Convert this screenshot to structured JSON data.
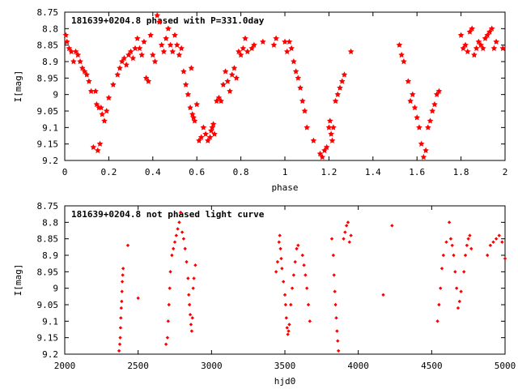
{
  "chart_data": [
    {
      "type": "scatter",
      "title": "181639+0204.8 phased with P=331.0day",
      "xlabel": "phase",
      "ylabel": "I[mag]",
      "xlim": [
        0,
        2
      ],
      "ylim": [
        9.2,
        8.75
      ],
      "y_inverted": true,
      "grid": false,
      "x_ticks": [
        "0",
        "0.2",
        "0.4",
        "0.6",
        "0.8",
        "1",
        "1.2",
        "1.4",
        "1.6",
        "1.8",
        "2"
      ],
      "y_ticks": [
        "8.75",
        "8.8",
        "8.85",
        "8.9",
        "8.95",
        "9",
        "9.05",
        "9.1",
        "9.15",
        "9.2"
      ],
      "marker_color": "#ff0000",
      "marker": "star",
      "points": [
        [
          0.005,
          8.82
        ],
        [
          0.01,
          8.84
        ],
        [
          0.02,
          8.86
        ],
        [
          0.03,
          8.87
        ],
        [
          0.04,
          8.9
        ],
        [
          0.05,
          8.87
        ],
        [
          0.06,
          8.88
        ],
        [
          0.07,
          8.9
        ],
        [
          0.08,
          8.92
        ],
        [
          0.09,
          8.93
        ],
        [
          0.1,
          8.94
        ],
        [
          0.11,
          8.96
        ],
        [
          0.12,
          8.99
        ],
        [
          0.13,
          9.16
        ],
        [
          0.14,
          8.99
        ],
        [
          0.145,
          9.03
        ],
        [
          0.15,
          9.17
        ],
        [
          0.155,
          9.04
        ],
        [
          0.16,
          9.15
        ],
        [
          0.165,
          9.04
        ],
        [
          0.17,
          9.06
        ],
        [
          0.18,
          9.08
        ],
        [
          0.19,
          9.05
        ],
        [
          0.2,
          9.01
        ],
        [
          0.22,
          8.97
        ],
        [
          0.24,
          8.94
        ],
        [
          0.25,
          8.92
        ],
        [
          0.26,
          8.9
        ],
        [
          0.27,
          8.89
        ],
        [
          0.28,
          8.91
        ],
        [
          0.29,
          8.88
        ],
        [
          0.3,
          8.87
        ],
        [
          0.31,
          8.89
        ],
        [
          0.32,
          8.86
        ],
        [
          0.33,
          8.83
        ],
        [
          0.34,
          8.86
        ],
        [
          0.35,
          8.88
        ],
        [
          0.36,
          8.84
        ],
        [
          0.37,
          8.95
        ],
        [
          0.38,
          8.96
        ],
        [
          0.39,
          8.82
        ],
        [
          0.4,
          8.88
        ],
        [
          0.41,
          8.9
        ],
        [
          0.42,
          8.76
        ],
        [
          0.43,
          8.78
        ],
        [
          0.44,
          8.85
        ],
        [
          0.45,
          8.87
        ],
        [
          0.46,
          8.83
        ],
        [
          0.47,
          8.8
        ],
        [
          0.48,
          8.85
        ],
        [
          0.49,
          8.87
        ],
        [
          0.5,
          8.82
        ],
        [
          0.51,
          8.85
        ],
        [
          0.52,
          8.88
        ],
        [
          0.53,
          8.86
        ],
        [
          0.54,
          8.93
        ],
        [
          0.55,
          8.97
        ],
        [
          0.56,
          9.0
        ],
        [
          0.57,
          9.04
        ],
        [
          0.575,
          8.92
        ],
        [
          0.58,
          9.06
        ],
        [
          0.585,
          9.07
        ],
        [
          0.59,
          9.08
        ],
        [
          0.6,
          9.03
        ],
        [
          0.61,
          9.14
        ],
        [
          0.62,
          9.13
        ],
        [
          0.63,
          9.1
        ],
        [
          0.64,
          9.12
        ],
        [
          0.65,
          9.14
        ],
        [
          0.66,
          9.13
        ],
        [
          0.665,
          9.11
        ],
        [
          0.67,
          9.1
        ],
        [
          0.675,
          9.09
        ],
        [
          0.68,
          9.12
        ],
        [
          0.69,
          9.02
        ],
        [
          0.7,
          9.01
        ],
        [
          0.71,
          9.02
        ],
        [
          0.72,
          8.97
        ],
        [
          0.73,
          8.93
        ],
        [
          0.74,
          8.96
        ],
        [
          0.75,
          8.99
        ],
        [
          0.76,
          8.94
        ],
        [
          0.77,
          8.92
        ],
        [
          0.78,
          8.95
        ],
        [
          0.79,
          8.87
        ],
        [
          0.8,
          8.88
        ],
        [
          0.81,
          8.86
        ],
        [
          0.82,
          8.83
        ],
        [
          0.83,
          8.87
        ],
        [
          0.85,
          8.86
        ],
        [
          0.86,
          8.85
        ],
        [
          0.9,
          8.84
        ],
        [
          0.95,
          8.85
        ],
        [
          0.96,
          8.83
        ],
        [
          1.0,
          8.84
        ],
        [
          1.01,
          8.87
        ],
        [
          1.02,
          8.84
        ],
        [
          1.03,
          8.86
        ],
        [
          1.04,
          8.9
        ],
        [
          1.05,
          8.93
        ],
        [
          1.06,
          8.95
        ],
        [
          1.07,
          8.98
        ],
        [
          1.08,
          9.02
        ],
        [
          1.09,
          9.05
        ],
        [
          1.1,
          9.1
        ],
        [
          1.13,
          9.14
        ],
        [
          1.16,
          9.18
        ],
        [
          1.17,
          9.19
        ],
        [
          1.18,
          9.17
        ],
        [
          1.19,
          9.16
        ],
        [
          1.2,
          9.1
        ],
        [
          1.205,
          9.08
        ],
        [
          1.21,
          9.12
        ],
        [
          1.215,
          9.14
        ],
        [
          1.22,
          9.1
        ],
        [
          1.23,
          9.02
        ],
        [
          1.24,
          9.0
        ],
        [
          1.25,
          8.98
        ],
        [
          1.26,
          8.96
        ],
        [
          1.27,
          8.94
        ],
        [
          1.3,
          8.87
        ],
        [
          1.52,
          8.85
        ],
        [
          1.53,
          8.88
        ],
        [
          1.54,
          8.9
        ],
        [
          1.56,
          8.96
        ],
        [
          1.57,
          9.02
        ],
        [
          1.58,
          9.0
        ],
        [
          1.59,
          9.04
        ],
        [
          1.6,
          9.07
        ],
        [
          1.61,
          9.1
        ],
        [
          1.62,
          9.15
        ],
        [
          1.63,
          9.19
        ],
        [
          1.64,
          9.17
        ],
        [
          1.65,
          9.1
        ],
        [
          1.66,
          9.08
        ],
        [
          1.67,
          9.05
        ],
        [
          1.68,
          9.03
        ],
        [
          1.69,
          9.0
        ],
        [
          1.7,
          8.99
        ],
        [
          1.8,
          8.82
        ],
        [
          1.81,
          8.86
        ],
        [
          1.82,
          8.85
        ],
        [
          1.83,
          8.87
        ],
        [
          1.84,
          8.81
        ],
        [
          1.85,
          8.8
        ],
        [
          1.86,
          8.88
        ],
        [
          1.87,
          8.86
        ],
        [
          1.88,
          8.84
        ],
        [
          1.89,
          8.85
        ],
        [
          1.9,
          8.86
        ],
        [
          1.91,
          8.83
        ],
        [
          1.92,
          8.82
        ],
        [
          1.93,
          8.81
        ],
        [
          1.94,
          8.8
        ],
        [
          1.95,
          8.86
        ],
        [
          1.96,
          8.84
        ],
        [
          1.99,
          8.86
        ]
      ]
    },
    {
      "type": "scatter",
      "title": "181639+0204.8 not phased light curve",
      "xlabel": "hjd0",
      "ylabel": "I[mag]",
      "xlim": [
        2000,
        5000
      ],
      "ylim": [
        9.2,
        8.75
      ],
      "y_inverted": true,
      "grid": false,
      "x_ticks": [
        "2000",
        "2500",
        "3000",
        "3500",
        "4000",
        "4500",
        "5000"
      ],
      "y_ticks": [
        "8.75",
        "8.8",
        "8.85",
        "8.9",
        "8.95",
        "9",
        "9.05",
        "9.1",
        "9.15",
        "9.2"
      ],
      "marker_color": "#ff0000",
      "marker": "diamond",
      "points": [
        [
          2370,
          9.19
        ],
        [
          2375,
          9.17
        ],
        [
          2378,
          9.15
        ],
        [
          2380,
          9.12
        ],
        [
          2382,
          9.09
        ],
        [
          2385,
          9.06
        ],
        [
          2388,
          9.04
        ],
        [
          2390,
          9.01
        ],
        [
          2392,
          8.98
        ],
        [
          2395,
          8.96
        ],
        [
          2398,
          8.94
        ],
        [
          2430,
          8.87
        ],
        [
          2500,
          9.03
        ],
        [
          2690,
          9.17
        ],
        [
          2700,
          9.15
        ],
        [
          2705,
          9.1
        ],
        [
          2710,
          9.05
        ],
        [
          2715,
          9.0
        ],
        [
          2720,
          8.95
        ],
        [
          2730,
          8.9
        ],
        [
          2740,
          8.88
        ],
        [
          2750,
          8.86
        ],
        [
          2760,
          8.84
        ],
        [
          2770,
          8.82
        ],
        [
          2780,
          8.8
        ],
        [
          2790,
          8.77
        ],
        [
          2800,
          8.83
        ],
        [
          2810,
          8.85
        ],
        [
          2820,
          8.88
        ],
        [
          2830,
          8.92
        ],
        [
          2840,
          8.97
        ],
        [
          2845,
          9.02
        ],
        [
          2850,
          9.05
        ],
        [
          2855,
          9.08
        ],
        [
          2860,
          9.11
        ],
        [
          2865,
          9.13
        ],
        [
          2870,
          9.09
        ],
        [
          2875,
          9.0
        ],
        [
          2880,
          8.97
        ],
        [
          2890,
          8.93
        ],
        [
          3440,
          8.95
        ],
        [
          3450,
          8.92
        ],
        [
          3460,
          8.86
        ],
        [
          3465,
          8.84
        ],
        [
          3470,
          8.88
        ],
        [
          3475,
          8.91
        ],
        [
          3480,
          8.94
        ],
        [
          3490,
          8.98
        ],
        [
          3500,
          9.02
        ],
        [
          3505,
          9.05
        ],
        [
          3510,
          9.09
        ],
        [
          3515,
          9.12
        ],
        [
          3520,
          9.14
        ],
        [
          3525,
          9.13
        ],
        [
          3530,
          9.11
        ],
        [
          3540,
          9.05
        ],
        [
          3550,
          9.0
        ],
        [
          3560,
          8.96
        ],
        [
          3570,
          8.92
        ],
        [
          3580,
          8.88
        ],
        [
          3590,
          8.87
        ],
        [
          3620,
          8.9
        ],
        [
          3630,
          8.93
        ],
        [
          3640,
          8.96
        ],
        [
          3650,
          9.0
        ],
        [
          3660,
          9.05
        ],
        [
          3670,
          9.1
        ],
        [
          3820,
          8.85
        ],
        [
          3830,
          8.9
        ],
        [
          3835,
          8.96
        ],
        [
          3840,
          9.01
        ],
        [
          3845,
          9.05
        ],
        [
          3850,
          9.09
        ],
        [
          3855,
          9.13
        ],
        [
          3860,
          9.16
        ],
        [
          3865,
          9.19
        ],
        [
          3900,
          8.85
        ],
        [
          3910,
          8.83
        ],
        [
          3920,
          8.81
        ],
        [
          3930,
          8.8
        ],
        [
          3940,
          8.86
        ],
        [
          3950,
          8.84
        ],
        [
          4170,
          9.02
        ],
        [
          4230,
          8.81
        ],
        [
          4540,
          9.1
        ],
        [
          4550,
          9.05
        ],
        [
          4560,
          9.0
        ],
        [
          4570,
          8.94
        ],
        [
          4580,
          8.9
        ],
        [
          4600,
          8.86
        ],
        [
          4620,
          8.8
        ],
        [
          4630,
          8.85
        ],
        [
          4640,
          8.87
        ],
        [
          4650,
          8.9
        ],
        [
          4660,
          8.95
        ],
        [
          4670,
          9.0
        ],
        [
          4680,
          9.06
        ],
        [
          4690,
          9.04
        ],
        [
          4700,
          9.01
        ],
        [
          4720,
          8.95
        ],
        [
          4730,
          8.9
        ],
        [
          4740,
          8.87
        ],
        [
          4750,
          8.85
        ],
        [
          4760,
          8.84
        ],
        [
          4770,
          8.88
        ],
        [
          4880,
          8.9
        ],
        [
          4900,
          8.87
        ],
        [
          4920,
          8.86
        ],
        [
          4940,
          8.85
        ],
        [
          4960,
          8.84
        ],
        [
          4980,
          8.86
        ],
        [
          5000,
          8.91
        ]
      ]
    }
  ]
}
